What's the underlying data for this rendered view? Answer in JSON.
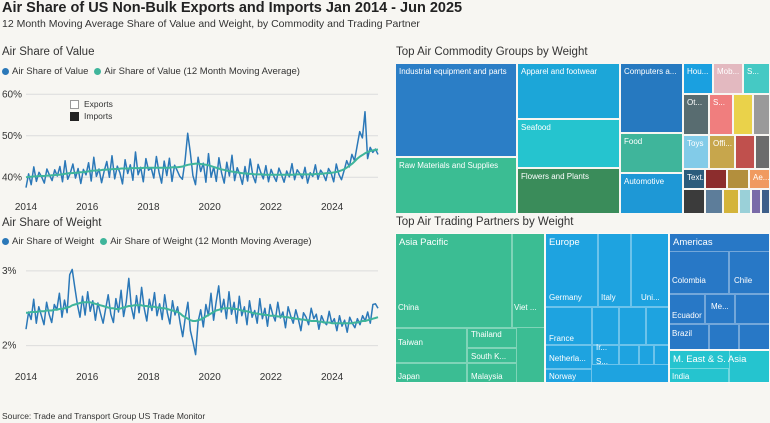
{
  "header": {
    "title": "Air Share of US Non-Bulk Exports and Imports Jan 2014 - Jun 2025",
    "subtitle": "12 Month Moving Average Share of Value and Weight, by Commodity and Trading Partner"
  },
  "sections": {
    "value_title": "Air Share of Value",
    "weight_title": "Air Share of Weight",
    "commodity_title": "Top Air Commodity Groups by Weight",
    "partner_title": "Top Air Trading Partners by Weight"
  },
  "legends": {
    "value_series": "Air Share of Value",
    "value_ma": "Air Share of Value (12 Month Moving Average)",
    "weight_series": "Air Share of Weight",
    "weight_ma": "Air Share of Weight (12 Month Moving Average)",
    "exports": "Exports",
    "imports": "Imports"
  },
  "colors": {
    "series": "#2b78b8",
    "moving_average": "#3fb59b",
    "grid": "#dcdcdc"
  },
  "chart_data": [
    {
      "type": "line",
      "title": "Air Share of Value",
      "x_range": [
        2014.0,
        2025.5
      ],
      "xticks": [
        2014,
        2016,
        2018,
        2020,
        2022,
        2024
      ],
      "yticks": [
        40,
        50,
        60
      ],
      "ytick_labels": [
        "40%",
        "50%",
        "60%"
      ],
      "ylim": [
        35,
        62
      ],
      "grid": true,
      "series": [
        {
          "name": "Air Share of Value",
          "values": [
            37.5,
            40.8,
            38.2,
            42.5,
            39.0,
            41.2,
            40.1,
            38.6,
            42.0,
            40.5,
            39.2,
            41.8,
            40.3,
            42.6,
            38.9,
            44.0,
            39.5,
            41.0,
            43.2,
            39.8,
            42.1,
            38.5,
            41.9,
            40.6,
            43.5,
            39.1,
            44.8,
            40.2,
            42.0,
            38.7,
            41.5,
            43.8,
            40.0,
            45.2,
            39.6,
            42.7,
            41.1,
            38.4,
            44.2,
            40.9,
            43.0,
            39.3,
            46.1,
            40.6,
            42.4,
            38.9,
            44.5,
            41.7,
            42.2,
            39.8,
            45.0,
            41.2,
            38.6,
            43.9,
            40.4,
            44.6,
            39.0,
            42.9,
            41.6,
            40.2,
            39.5,
            44.1,
            50.6,
            46.0,
            40.4,
            38.2,
            44.8,
            41.4,
            43.4,
            38.8,
            45.7,
            40.0,
            42.5,
            39.0,
            44.7,
            41.0,
            38.6,
            43.6,
            40.3,
            45.3,
            39.2,
            42.3,
            40.7,
            38.3,
            42.6,
            39.1,
            44.4,
            40.5,
            38.7,
            43.1,
            41.2,
            39.6,
            42.8,
            38.9,
            41.9,
            40.3,
            39.0,
            42.2,
            40.6,
            38.8,
            41.5,
            40.1,
            43.3,
            39.4,
            41.8,
            40.9,
            39.7,
            42.4,
            38.6,
            41.1,
            40.2,
            43.0,
            39.5,
            41.7,
            40.8,
            39.2,
            42.1,
            41.0,
            38.9,
            43.2,
            40.7,
            39.4,
            41.6,
            44.0,
            42.5,
            45.5,
            44.0,
            47.5,
            51.0,
            49.5,
            55.8,
            44.5,
            47.2,
            46.0,
            46.8,
            45.5
          ],
          "color": "#2b78b8"
        },
        {
          "name": "Air Share of Value (12 Month Moving Average)",
          "values": [
            40.0,
            40.1,
            40.1,
            40.2,
            40.2,
            40.3,
            40.3,
            40.3,
            40.4,
            40.4,
            40.5,
            40.5,
            40.6,
            40.6,
            40.7,
            40.8,
            40.9,
            41.0,
            41.0,
            41.1,
            41.1,
            41.2,
            41.2,
            41.3,
            41.4,
            41.5,
            41.6,
            41.6,
            41.7,
            41.7,
            41.8,
            41.8,
            41.9,
            41.9,
            42.0,
            42.0,
            42.0,
            42.1,
            42.1,
            42.1,
            42.1,
            42.2,
            42.2,
            42.2,
            42.2,
            42.2,
            42.3,
            42.3,
            42.3,
            42.3,
            42.3,
            42.3,
            42.3,
            42.3,
            42.3,
            42.3,
            42.3,
            42.4,
            42.4,
            42.4,
            42.5,
            42.6,
            42.8,
            43.0,
            43.1,
            43.2,
            43.3,
            43.3,
            43.2,
            43.1,
            43.0,
            42.9,
            42.7,
            42.5,
            42.3,
            42.1,
            41.9,
            41.8,
            41.6,
            41.5,
            41.4,
            41.3,
            41.2,
            41.1,
            41.0,
            40.9,
            40.9,
            40.8,
            40.8,
            40.7,
            40.7,
            40.7,
            40.7,
            40.6,
            40.6,
            40.6,
            40.6,
            40.6,
            40.6,
            40.6,
            40.6,
            40.6,
            40.6,
            40.6,
            40.6,
            40.7,
            40.7,
            40.7,
            40.7,
            40.7,
            40.7,
            40.7,
            40.7,
            40.8,
            40.8,
            40.8,
            40.9,
            41.0,
            41.0,
            41.1,
            41.2,
            41.3,
            41.5,
            41.7,
            42.0,
            42.4,
            42.8,
            43.3,
            43.9,
            44.5,
            45.0,
            45.4,
            45.8,
            46.1,
            46.3,
            46.5,
            46.6,
            46.7
          ],
          "color": "#3fb59b"
        }
      ],
      "legend_markers": [
        "Exports",
        "Imports"
      ]
    },
    {
      "type": "line",
      "title": "Air Share of Weight",
      "x_range": [
        2014.0,
        2025.5
      ],
      "xticks": [
        2014,
        2016,
        2018,
        2020,
        2022,
        2024
      ],
      "yticks": [
        2,
        3
      ],
      "ytick_labels": [
        "2%",
        "3%"
      ],
      "ylim": [
        1.7,
        3.2
      ],
      "grid": true,
      "series": [
        {
          "name": "Air Share of Weight",
          "values": [
            2.22,
            2.45,
            2.35,
            2.62,
            2.3,
            2.52,
            2.4,
            2.28,
            2.58,
            2.42,
            2.31,
            2.55,
            2.48,
            2.7,
            2.38,
            2.61,
            2.44,
            2.95,
            3.02,
            2.78,
            2.55,
            2.38,
            2.66,
            2.41,
            2.72,
            2.46,
            2.6,
            2.34,
            2.57,
            2.43,
            2.3,
            2.49,
            2.68,
            2.42,
            2.31,
            2.63,
            2.45,
            2.74,
            2.39,
            2.58,
            2.9,
            2.52,
            2.36,
            2.67,
            2.44,
            2.78,
            2.5,
            2.33,
            2.62,
            2.47,
            2.71,
            2.4,
            2.56,
            2.35,
            2.68,
            2.44,
            2.29,
            2.6,
            2.41,
            2.52,
            2.3,
            2.12,
            2.38,
            2.58,
            2.2,
            2.05,
            1.88,
            2.32,
            2.48,
            2.25,
            2.55,
            2.4,
            2.7,
            2.34,
            2.58,
            2.8,
            2.45,
            2.62,
            2.36,
            2.72,
            2.42,
            2.58,
            2.3,
            2.66,
            2.4,
            2.52,
            2.28,
            2.6,
            2.38,
            2.47,
            2.3,
            2.63,
            2.36,
            2.5,
            2.26,
            2.55,
            2.42,
            2.33,
            2.58,
            2.37,
            2.45,
            2.24,
            2.52,
            2.4,
            2.3,
            2.48,
            2.35,
            2.2,
            2.44,
            2.38,
            2.28,
            2.5,
            2.36,
            2.42,
            2.22,
            2.4,
            2.32,
            2.28,
            2.46,
            2.3,
            2.36,
            2.2,
            2.4,
            2.26,
            2.34,
            2.18,
            2.38,
            2.3,
            2.24,
            2.36,
            2.28,
            2.4,
            2.33,
            2.45,
            2.3,
            2.55,
            2.56,
            2.5
          ],
          "color": "#2b78b8"
        },
        {
          "name": "Air Share of Weight (12 Month Moving Average)",
          "values": [
            2.44,
            2.44,
            2.45,
            2.45,
            2.45,
            2.46,
            2.46,
            2.46,
            2.47,
            2.47,
            2.47,
            2.48,
            2.48,
            2.49,
            2.49,
            2.5,
            2.51,
            2.52,
            2.54,
            2.55,
            2.56,
            2.57,
            2.58,
            2.58,
            2.58,
            2.58,
            2.57,
            2.56,
            2.55,
            2.54,
            2.53,
            2.52,
            2.51,
            2.5,
            2.5,
            2.49,
            2.49,
            2.5,
            2.51,
            2.52,
            2.53,
            2.53,
            2.54,
            2.54,
            2.54,
            2.54,
            2.53,
            2.53,
            2.52,
            2.52,
            2.52,
            2.51,
            2.51,
            2.5,
            2.5,
            2.49,
            2.48,
            2.47,
            2.46,
            2.45,
            2.43,
            2.4,
            2.38,
            2.36,
            2.34,
            2.33,
            2.33,
            2.34,
            2.35,
            2.37,
            2.39,
            2.41,
            2.43,
            2.45,
            2.47,
            2.48,
            2.49,
            2.5,
            2.5,
            2.5,
            2.5,
            2.49,
            2.49,
            2.48,
            2.47,
            2.46,
            2.46,
            2.45,
            2.44,
            2.43,
            2.43,
            2.42,
            2.42,
            2.41,
            2.41,
            2.4,
            2.4,
            2.4,
            2.39,
            2.39,
            2.39,
            2.38,
            2.38,
            2.37,
            2.37,
            2.36,
            2.36,
            2.35,
            2.35,
            2.34,
            2.34,
            2.33,
            2.33,
            2.33,
            2.32,
            2.32,
            2.31,
            2.31,
            2.31,
            2.3,
            2.3,
            2.3,
            2.3,
            2.3,
            2.3,
            2.3,
            2.3,
            2.3,
            2.31,
            2.31,
            2.32,
            2.33,
            2.33,
            2.34,
            2.35,
            2.36,
            2.37,
            2.38
          ],
          "color": "#3fb59b"
        }
      ]
    },
    {
      "type": "treemap",
      "title": "Top Air Commodity Groups by Weight",
      "cells": [
        {
          "label": "Industrial equipment and parts",
          "color": "#2b7ec6"
        },
        {
          "label": "Raw Materials and Supplies",
          "color": "#3bbd93"
        },
        {
          "label": "Apparel and footwear",
          "color": "#1ca6d8"
        },
        {
          "label": "Seafood",
          "color": "#25c4cf"
        },
        {
          "label": "Flowers and Plants",
          "color": "#3a8c5a"
        },
        {
          "label": "Computers a...",
          "color": "#2679c0"
        },
        {
          "label": "Food",
          "color": "#3fb59b"
        },
        {
          "label": "Automotive",
          "color": "#1e98d6"
        },
        {
          "label": "Hou...",
          "color": "#1aa0e0"
        },
        {
          "label": "Mob...",
          "color": "#e3b9c0"
        },
        {
          "label": "S...",
          "color": "#45c9c4"
        },
        {
          "label": "Ot...",
          "color": "#586c70"
        },
        {
          "label": "S...",
          "color": "#f07e7e"
        },
        {
          "label": "",
          "color": "#ead24a"
        },
        {
          "label": "",
          "color": "#9a9a9a"
        },
        {
          "label": "Toys",
          "color": "#82cbe8"
        },
        {
          "label": "Offi...",
          "color": "#c7a64c"
        },
        {
          "label": "",
          "color": "#c0504d"
        },
        {
          "label": "",
          "color": "#6c6c6c"
        },
        {
          "label": "Text...",
          "color": "#2b5c7c"
        },
        {
          "label": "",
          "color": "#8c2d2d"
        },
        {
          "label": "",
          "color": "#b38f3d"
        },
        {
          "label": "Ae...",
          "color": "#f09a60"
        },
        {
          "label": "",
          "color": "#3b3b3b"
        },
        {
          "label": "",
          "color": "#5d7d9a"
        },
        {
          "label": "",
          "color": "#d4b43a"
        },
        {
          "label": "",
          "color": "#9ad0d8"
        },
        {
          "label": "",
          "color": "#7a6aa8"
        },
        {
          "label": "",
          "color": "#3e5f8a"
        }
      ]
    },
    {
      "type": "treemap",
      "title": "Top Air Trading Partners by Weight",
      "regions": [
        {
          "label": "Asia Pacific",
          "color": "#3bbd93"
        },
        {
          "label": "Europe",
          "color": "#1ea3e0"
        },
        {
          "label": "Americas",
          "color": "#2878c6"
        },
        {
          "label": "M. East & S. Asia",
          "color": "#25c4cf"
        }
      ],
      "countries": [
        "China",
        "Viet ...",
        "Taiwan",
        "Thailand",
        "South K...",
        "Japan",
        "Malaysia",
        "Germany",
        "Italy",
        "Uni...",
        "France",
        "Netherla...",
        "Norway",
        "Ir...",
        "S...",
        "Colombia",
        "Chile",
        "Me...",
        "Ecuador",
        "Brazil",
        "India"
      ]
    }
  ],
  "footer": {
    "source": "Source: Trade and Transport Group US Trade Monitor"
  }
}
